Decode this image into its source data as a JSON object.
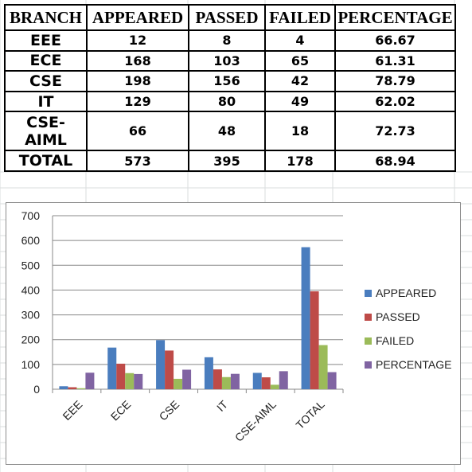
{
  "table": {
    "headers": [
      "BRANCH",
      "APPEARED",
      "PASSED",
      "FAILED",
      "PERCENTAGE"
    ],
    "rows": [
      [
        "EEE",
        "12",
        "8",
        "4",
        "66.67"
      ],
      [
        "ECE",
        "168",
        "103",
        "65",
        "61.31"
      ],
      [
        "CSE",
        "198",
        "156",
        "42",
        "78.79"
      ],
      [
        "IT",
        "129",
        "80",
        "49",
        "62.02"
      ],
      [
        "CSE-AIML",
        "66",
        "48",
        "18",
        "72.73"
      ],
      [
        "TOTAL",
        "573",
        "395",
        "178",
        "68.94"
      ]
    ]
  },
  "chart_data": {
    "type": "bar",
    "categories": [
      "EEE",
      "ECE",
      "CSE",
      "IT",
      "CSE-AIML",
      "TOTAL"
    ],
    "series": [
      {
        "name": "APPEARED",
        "values": [
          12,
          168,
          198,
          129,
          66,
          573
        ],
        "color": "#4a7dbe"
      },
      {
        "name": "PASSED",
        "values": [
          8,
          103,
          156,
          80,
          48,
          395
        ],
        "color": "#be4b48"
      },
      {
        "name": "FAILED",
        "values": [
          4,
          65,
          42,
          49,
          18,
          178
        ],
        "color": "#9bbb59"
      },
      {
        "name": "PERCENTAGE",
        "values": [
          66.67,
          61.31,
          78.79,
          62.02,
          72.73,
          68.94
        ],
        "color": "#8064a2"
      }
    ],
    "ylim": [
      0,
      700
    ],
    "yticks": [
      0,
      100,
      200,
      300,
      400,
      500,
      600,
      700
    ],
    "grid": true,
    "legend_position": "right"
  }
}
